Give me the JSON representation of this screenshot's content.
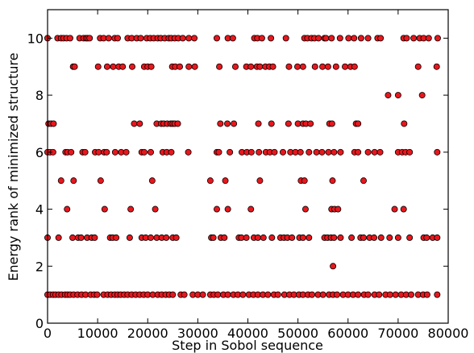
{
  "chart_data": {
    "type": "scatter",
    "xlabel": "Step in Sobol sequence",
    "ylabel": "Energy rank of minimized structure",
    "xlim": [
      0,
      80000
    ],
    "ylim": [
      0,
      11
    ],
    "x_ticks": [
      0,
      10000,
      20000,
      30000,
      40000,
      50000,
      60000,
      70000,
      80000
    ],
    "y_ticks": [
      0,
      2,
      4,
      6,
      8,
      10
    ],
    "grid": false,
    "marker_color": "#e8171d",
    "marker_edge_color": "#000000",
    "points": {
      "rank_10": [
        0,
        2000,
        2700,
        3200,
        3800,
        4500,
        6400,
        7200,
        7700,
        8000,
        8400,
        10500,
        11200,
        12200,
        13400,
        14000,
        16000,
        16800,
        17800,
        18600,
        19800,
        20500,
        21200,
        22000,
        22600,
        23400,
        24200,
        24700,
        25400,
        26100,
        27000,
        28200,
        29300,
        33800,
        36000,
        37000,
        41300,
        41900,
        42800,
        44600,
        47600,
        51300,
        51900,
        52700,
        53300,
        54100,
        55300,
        55600,
        56700,
        58400,
        60100,
        61200,
        62600,
        64000,
        65900,
        66500,
        71100,
        71700,
        73100,
        74300,
        75100,
        76100,
        77900
      ],
      "rank_9": [
        5100,
        5400,
        10100,
        11900,
        13100,
        14200,
        15000,
        16900,
        19300,
        20000,
        20700,
        24900,
        25500,
        26400,
        28200,
        29400,
        34300,
        37500,
        39700,
        40600,
        41800,
        42400,
        43500,
        44300,
        45000,
        48200,
        49900,
        51000,
        53400,
        54900,
        56000,
        57600,
        59400,
        60500,
        61300,
        74000,
        77700
      ],
      "rank_8": [
        68000,
        70000,
        74800
      ],
      "rank_7": [
        200,
        700,
        1200,
        17300,
        18400,
        21800,
        22700,
        23200,
        23900,
        24600,
        25000,
        25400,
        26000,
        34500,
        35900,
        37200,
        42100,
        44700,
        48100,
        50000,
        51000,
        51600,
        52500,
        56300,
        56800,
        61600,
        62000,
        71200
      ],
      "rank_6": [
        0,
        500,
        1100,
        3600,
        4000,
        4700,
        7000,
        7500,
        9500,
        10200,
        11300,
        11800,
        13500,
        14700,
        15700,
        18800,
        19300,
        20600,
        23000,
        23800,
        24700,
        28100,
        33800,
        34200,
        36400,
        38800,
        39800,
        40700,
        42200,
        43600,
        44400,
        45300,
        47000,
        48500,
        49500,
        50500,
        52200,
        53700,
        54800,
        56100,
        57200,
        58500,
        61300,
        62000,
        64000,
        65300,
        66400,
        70000,
        70800,
        71500,
        72300,
        77800
      ],
      "rank_5": [
        2700,
        5200,
        10600,
        20900,
        32500,
        35500,
        42400,
        50600,
        51300,
        56900,
        63100
      ],
      "rank_4": [
        3900,
        11400,
        16600,
        21500,
        33800,
        36000,
        40600,
        51500,
        56700,
        57300,
        58000,
        69300,
        71100
      ],
      "rank_3": [
        0,
        2200,
        5000,
        6100,
        6700,
        7900,
        8800,
        9400,
        12500,
        13000,
        13700,
        16400,
        18800,
        19600,
        20600,
        21800,
        22800,
        23700,
        25000,
        25700,
        32700,
        33100,
        34600,
        35300,
        38200,
        38700,
        39700,
        41200,
        42000,
        43100,
        44800,
        46500,
        47200,
        47900,
        48800,
        50300,
        51000,
        52200,
        55300,
        55900,
        56600,
        57200,
        58500,
        60700,
        62500,
        63100,
        64300,
        65200,
        66600,
        68300,
        70000,
        72300,
        75100,
        75700,
        76900,
        77800
      ],
      "rank_2": [
        57000
      ],
      "rank_1": [
        0,
        500,
        1100,
        1600,
        2200,
        2800,
        3500,
        4000,
        4500,
        5200,
        6000,
        6800,
        7600,
        8600,
        9300,
        9900,
        11200,
        12000,
        12700,
        13400,
        14000,
        14600,
        15300,
        16000,
        16800,
        17600,
        18400,
        19200,
        20000,
        21000,
        22000,
        22800,
        23600,
        24300,
        25000,
        26600,
        27300,
        29000,
        30000,
        31000,
        32500,
        33200,
        34000,
        35100,
        36000,
        37100,
        38000,
        39000,
        40200,
        41100,
        42000,
        43000,
        44000,
        45200,
        46000,
        47300,
        48300,
        49200,
        50200,
        51000,
        52000,
        52800,
        54000,
        55000,
        56200,
        57000,
        57800,
        59000,
        60000,
        61000,
        62000,
        63200,
        64000,
        65300,
        66200,
        67500,
        68400,
        69500,
        70600,
        71600,
        72600,
        74000,
        75000,
        75800,
        77800
      ]
    }
  }
}
